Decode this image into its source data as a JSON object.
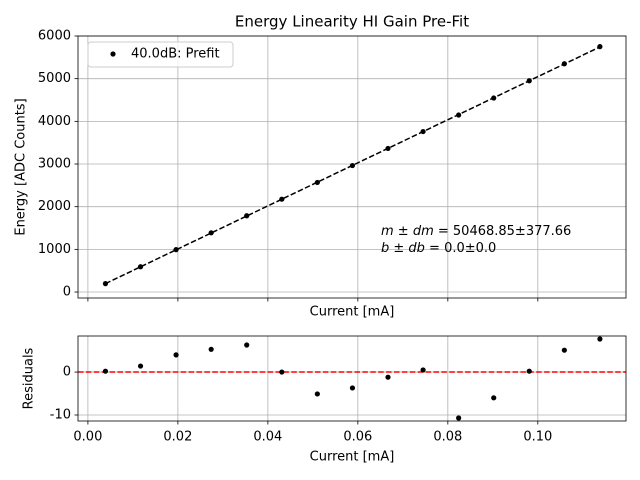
{
  "chart_data": [
    {
      "type": "scatter",
      "title": "Energy Linearity HI Gain Pre-Fit",
      "xlabel": "Current [mA]",
      "ylabel": "Energy [ADC Counts]",
      "x": [
        0.0039,
        0.0117,
        0.0196,
        0.0274,
        0.0353,
        0.0431,
        0.051,
        0.0588,
        0.0667,
        0.0745,
        0.0824,
        0.0902,
        0.0981,
        0.1059,
        0.1138
      ],
      "series": [
        {
          "name": "40.0dB: Prefit",
          "color": "#000000",
          "values": [
            197.0,
            591.9,
            993.2,
            1388.1,
            1787.9,
            2175.2,
            2568.8,
            2963.9,
            3365.1,
            3760.4,
            4147.9,
            4546.3,
            4951.2,
            5349.8,
            5751.1
          ]
        }
      ],
      "fit": {
        "x": [
          0.0039,
          0.1138
        ],
        "values": [
          196.8,
          5743.4
        ],
        "color": "#000000",
        "style": "dashed"
      },
      "xlim": [
        -0.0022,
        0.1196
      ],
      "ylim": [
        -140,
        6000
      ],
      "xticks": [
        0,
        0.02,
        0.04,
        0.06,
        0.08,
        0.1
      ],
      "show_xticklabels": false,
      "yticks": [
        0,
        1000,
        2000,
        3000,
        4000,
        5000,
        6000
      ],
      "grid": true,
      "legend": "upper left",
      "annotations": [
        {
          "math": "m ± dm",
          "text": " = 50468.85±377.66"
        },
        {
          "math": "b ± db",
          "text": " = 0.0±0.0"
        }
      ]
    },
    {
      "type": "scatter",
      "xlabel": "Current [mA]",
      "ylabel": "Residuals",
      "x": [
        0.0039,
        0.0117,
        0.0196,
        0.0274,
        0.0353,
        0.0431,
        0.051,
        0.0588,
        0.0667,
        0.0745,
        0.0824,
        0.0902,
        0.0981,
        0.1059,
        0.1138
      ],
      "series": [
        {
          "color": "#000000",
          "values": [
            0.2,
            1.4,
            4.0,
            5.3,
            6.3,
            0.0,
            -5.1,
            -3.7,
            -1.2,
            0.5,
            -10.7,
            -6.0,
            0.2,
            5.1,
            7.7
          ]
        }
      ],
      "hline": {
        "value": 0,
        "color": "#ff0000",
        "style": "dashed"
      },
      "xlim": [
        -0.0022,
        0.1196
      ],
      "ylim": [
        -11.4,
        8.4
      ],
      "xticks": [
        {
          "value": 0,
          "label": "0.00"
        },
        {
          "value": 0.02,
          "label": "0.02"
        },
        {
          "value": 0.04,
          "label": "0.04"
        },
        {
          "value": 0.06,
          "label": "0.06"
        },
        {
          "value": 0.08,
          "label": "0.08"
        },
        {
          "value": 0.1,
          "label": "0.10"
        }
      ],
      "yticks": [
        -10,
        0
      ],
      "grid": true
    }
  ]
}
